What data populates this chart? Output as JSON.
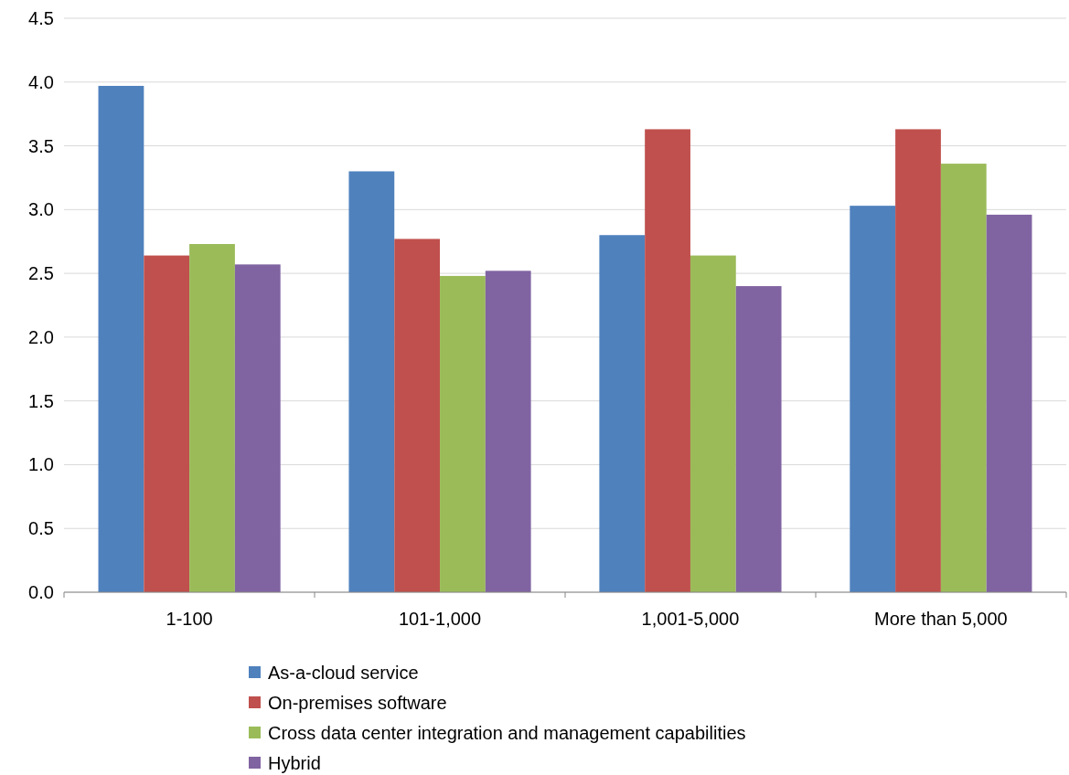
{
  "chart_data": {
    "type": "bar",
    "categories": [
      "1-100",
      "101-1,000",
      "1,001-5,000",
      "More than 5,000"
    ],
    "series": [
      {
        "name": "As-a-cloud service",
        "color": "#4f81bd",
        "values": [
          3.97,
          3.3,
          2.8,
          3.03
        ]
      },
      {
        "name": "On-premises software",
        "color": "#c0504d",
        "values": [
          2.64,
          2.77,
          3.63,
          3.63
        ]
      },
      {
        "name": "Cross data center integration and management capabilities",
        "color": "#9bbb59",
        "values": [
          2.73,
          2.48,
          2.64,
          3.36
        ]
      },
      {
        "name": "Hybrid",
        "color": "#8064a2",
        "values": [
          2.57,
          2.52,
          2.4,
          2.96
        ]
      }
    ],
    "ylim": [
      0,
      4.5
    ],
    "yticks": [
      {
        "value": 0,
        "label": "0.0"
      },
      {
        "value": 0.5,
        "label": "0.5"
      },
      {
        "value": 1,
        "label": "1.0"
      },
      {
        "value": 1.5,
        "label": "1.5"
      },
      {
        "value": 2,
        "label": "2.0"
      },
      {
        "value": 2.5,
        "label": "2.5"
      },
      {
        "value": 3,
        "label": "3.0"
      },
      {
        "value": 3.5,
        "label": "3.5"
      },
      {
        "value": 4,
        "label": "4.0"
      },
      {
        "value": 4.5,
        "label": "4.5"
      }
    ],
    "grid": "y",
    "legend": "bottom"
  }
}
